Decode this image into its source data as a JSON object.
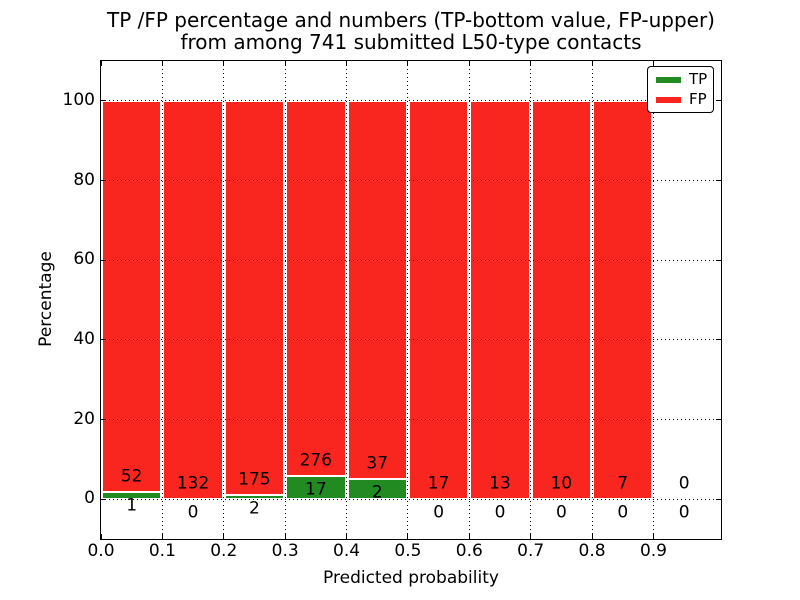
{
  "chart_data": {
    "type": "bar",
    "bar_mode": "percentage-stacked",
    "title_line1": "TP /FP percentage and numbers (TP-bottom value, FP-upper)",
    "title_line2": "from among 741 submitted L50-type contacts",
    "xlabel": "Predicted probability",
    "ylabel": "Percentage",
    "total_submitted": 741,
    "bin_width": 0.1,
    "categories": [
      "0.0",
      "0.1",
      "0.2",
      "0.3",
      "0.4",
      "0.5",
      "0.6",
      "0.7",
      "0.8",
      "0.9"
    ],
    "series": [
      {
        "name": "TP",
        "color": "#218a21",
        "values": [
          1,
          0,
          2,
          17,
          2,
          0,
          0,
          0,
          0,
          0
        ]
      },
      {
        "name": "FP",
        "color": "#f9251f",
        "values": [
          52,
          132,
          175,
          276,
          37,
          17,
          13,
          10,
          7,
          0
        ]
      }
    ],
    "x_ticks": [
      "0.0",
      "0.1",
      "0.2",
      "0.3",
      "0.4",
      "0.5",
      "0.6",
      "0.7",
      "0.8",
      "0.9"
    ],
    "y_ticks": [
      0,
      20,
      40,
      60,
      80,
      100
    ],
    "xlim": [
      0,
      1.01
    ],
    "ylim": [
      -10,
      110
    ],
    "grid": "dotted",
    "legend": {
      "position": "upper-right",
      "entries": [
        {
          "label": "TP",
          "color": "#218a21"
        },
        {
          "label": "FP",
          "color": "#f9251f"
        }
      ]
    }
  }
}
